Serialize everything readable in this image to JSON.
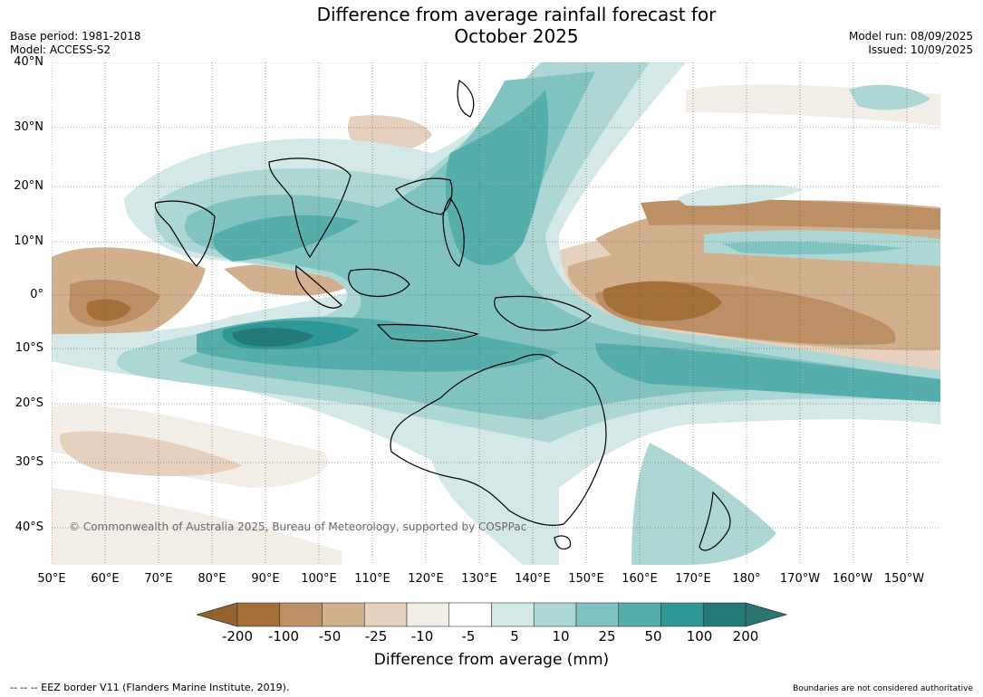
{
  "title_line1": "Difference from average rainfall forecast for",
  "title_line2": "October 2025",
  "base_period": "Base period: 1981-2018",
  "model": "Model: ACCESS-S2",
  "model_run": "Model run: 08/09/2025",
  "issued": "Issued: 10/09/2025",
  "copyright": "© Commonwealth of Australia 2025, Bureau of Meteorology, supported by COSPPac",
  "legend_title": "Difference from average (mm)",
  "footer_left": "-- -- -- EEZ border V11 (Flanders Marine Institute, 2019).",
  "footer_right": "Boundaries are not considered authoritative",
  "lat_labels": [
    "40°N",
    "30°N",
    "20°N",
    "10°N",
    "0°",
    "10°S",
    "20°S",
    "30°S",
    "40°S"
  ],
  "lon_labels": [
    "50°E",
    "60°E",
    "70°E",
    "80°E",
    "90°E",
    "100°E",
    "110°E",
    "120°E",
    "130°E",
    "140°E",
    "150°E",
    "160°E",
    "170°E",
    "180°",
    "170°W",
    "160°W",
    "150°W"
  ],
  "legend_ticks": [
    "-200",
    "-100",
    "-50",
    "-25",
    "-10",
    "-5",
    "5",
    "10",
    "25",
    "50",
    "100",
    "200"
  ],
  "legend_colors": [
    "#a4703a",
    "#bd8f64",
    "#d2b08e",
    "#e5d1bd",
    "#f2ede6",
    "#ffffff",
    "#d4e9e7",
    "#add7d5",
    "#80c3c1",
    "#56aeac",
    "#2d9896",
    "#237a79"
  ],
  "legend_extend_low": "#94622e",
  "legend_extend_high": "#2b7572"
}
